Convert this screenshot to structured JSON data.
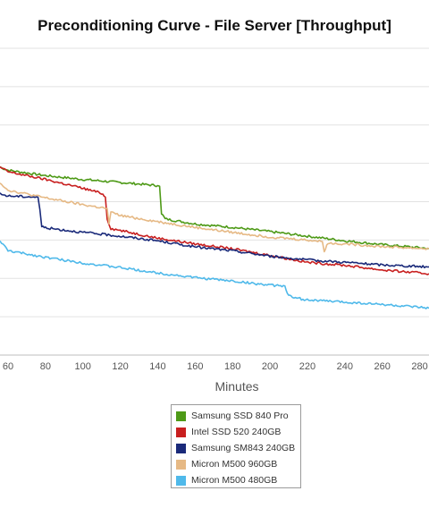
{
  "chart_data": {
    "type": "line",
    "title": "Preconditioning Curve - File Server [Throughput]",
    "xlabel": "Minutes",
    "ylabel": "",
    "x_ticks": [
      60,
      80,
      100,
      120,
      140,
      160,
      180,
      200,
      220,
      240,
      260,
      280
    ],
    "xlim": [
      55.7,
      285
    ],
    "ylim": [
      0,
      8
    ],
    "grid": true,
    "legend_position": "bottom",
    "series": [
      {
        "name": "Samsung SSD 840 Pro",
        "color": "#4e9a17",
        "points": [
          [
            55.7,
            4.9
          ],
          [
            60,
            4.82
          ],
          [
            80,
            4.68
          ],
          [
            100,
            4.58
          ],
          [
            120,
            4.5
          ],
          [
            140,
            4.42
          ],
          [
            141,
            4.4
          ],
          [
            142,
            3.7
          ],
          [
            144,
            3.55
          ],
          [
            160,
            3.42
          ],
          [
            180,
            3.33
          ],
          [
            200,
            3.22
          ],
          [
            220,
            3.1
          ],
          [
            240,
            2.98
          ],
          [
            260,
            2.88
          ],
          [
            285,
            2.78
          ]
        ]
      },
      {
        "name": "Intel SSD 520 240GB",
        "color": "#c81f1f",
        "points": [
          [
            55.7,
            4.9
          ],
          [
            60,
            4.78
          ],
          [
            80,
            4.58
          ],
          [
            100,
            4.35
          ],
          [
            110,
            4.22
          ],
          [
            112,
            4.12
          ],
          [
            113,
            3.55
          ],
          [
            115,
            3.3
          ],
          [
            120,
            3.25
          ],
          [
            140,
            3.05
          ],
          [
            160,
            2.9
          ],
          [
            180,
            2.77
          ],
          [
            200,
            2.6
          ],
          [
            220,
            2.42
          ],
          [
            240,
            2.34
          ],
          [
            260,
            2.22
          ],
          [
            285,
            2.12
          ]
        ]
      },
      {
        "name": "Samsung SM843 240GB",
        "color": "#1a2a7a",
        "points": [
          [
            55.7,
            4.2
          ],
          [
            60,
            4.15
          ],
          [
            76,
            4.12
          ],
          [
            77,
            3.8
          ],
          [
            78,
            3.35
          ],
          [
            80,
            3.32
          ],
          [
            100,
            3.2
          ],
          [
            120,
            3.1
          ],
          [
            140,
            2.98
          ],
          [
            160,
            2.82
          ],
          [
            180,
            2.72
          ],
          [
            200,
            2.58
          ],
          [
            220,
            2.48
          ],
          [
            240,
            2.42
          ],
          [
            260,
            2.35
          ],
          [
            285,
            2.3
          ]
        ]
      },
      {
        "name": "Micron M500 960GB",
        "color": "#e6b985",
        "points": [
          [
            55.7,
            4.5
          ],
          [
            60,
            4.3
          ],
          [
            80,
            4.1
          ],
          [
            100,
            3.92
          ],
          [
            113,
            3.82
          ],
          [
            114,
            3.42
          ],
          [
            115,
            3.72
          ],
          [
            120,
            3.64
          ],
          [
            140,
            3.48
          ],
          [
            160,
            3.33
          ],
          [
            180,
            3.2
          ],
          [
            200,
            3.08
          ],
          [
            220,
            3.0
          ],
          [
            228,
            2.96
          ],
          [
            229,
            2.72
          ],
          [
            231,
            2.92
          ],
          [
            240,
            2.9
          ],
          [
            260,
            2.83
          ],
          [
            285,
            2.77
          ]
        ]
      },
      {
        "name": "Micron M500 480GB",
        "color": "#4fb9ea",
        "points": [
          [
            55.7,
            2.98
          ],
          [
            60,
            2.72
          ],
          [
            80,
            2.55
          ],
          [
            100,
            2.4
          ],
          [
            120,
            2.28
          ],
          [
            140,
            2.14
          ],
          [
            160,
            2.02
          ],
          [
            180,
            1.93
          ],
          [
            200,
            1.82
          ],
          [
            208,
            1.8
          ],
          [
            210,
            1.55
          ],
          [
            212,
            1.5
          ],
          [
            220,
            1.44
          ],
          [
            240,
            1.38
          ],
          [
            260,
            1.32
          ],
          [
            285,
            1.22
          ]
        ]
      }
    ]
  }
}
